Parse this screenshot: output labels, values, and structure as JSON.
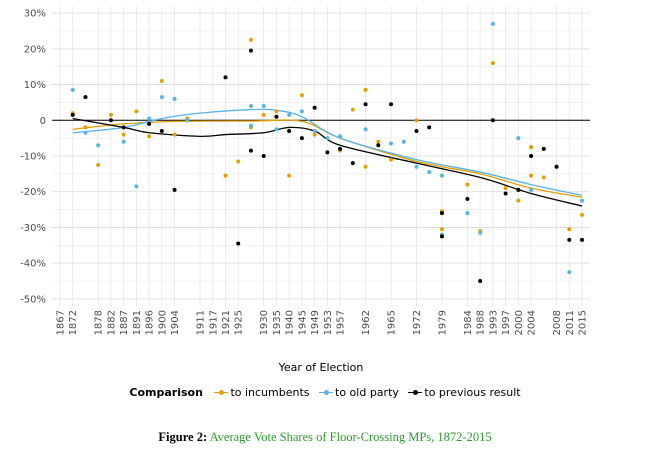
{
  "chart_data": {
    "type": "scatter",
    "title": "",
    "xlabel": "Year of Election",
    "ylabel": "",
    "ylim": [
      -0.52,
      0.32
    ],
    "y_ticks": [
      {
        "value": 0.3,
        "label": "30%"
      },
      {
        "value": 0.2,
        "label": "20%"
      },
      {
        "value": 0.1,
        "label": "10%"
      },
      {
        "value": 0.0,
        "label": "0"
      },
      {
        "value": -0.1,
        "label": "-10%"
      },
      {
        "value": -0.2,
        "label": "-20%"
      },
      {
        "value": -0.3,
        "label": "-30%"
      },
      {
        "value": -0.4,
        "label": "-40%"
      },
      {
        "value": -0.5,
        "label": "-50%"
      }
    ],
    "categories": [
      "1867",
      "1872",
      "1874",
      "1878",
      "1882",
      "1887",
      "1891",
      "1896",
      "1900",
      "1904",
      "1908",
      "1911",
      "1917",
      "1921",
      "1925",
      "1926",
      "1930",
      "1935",
      "1940",
      "1945",
      "1949",
      "1953",
      "1957",
      "1958",
      "1962",
      "1963",
      "1965",
      "1968",
      "1972",
      "1974",
      "1979",
      "1980",
      "1984",
      "1988",
      "1993",
      "1997",
      "2000",
      "2004",
      "2006",
      "2008",
      "2011",
      "2015"
    ],
    "x_tick_labels": [
      "1867",
      "1872",
      "1878",
      "1882",
      "1887",
      "1891",
      "1896",
      "1900",
      "1904",
      "1911",
      "1917",
      "1921",
      "1925",
      "1930",
      "1935",
      "1940",
      "1945",
      "1949",
      "1953",
      "1957",
      "1962",
      "1965",
      "1972",
      "1979",
      "1984",
      "1988",
      "1993",
      "1997",
      "2000",
      "2004",
      "2008",
      "2011",
      "2015"
    ],
    "zero_line": 0,
    "grid": true,
    "series": [
      {
        "name": "to incumbents",
        "color": "#E69F00",
        "points": [
          [
            "1872",
            0.02
          ],
          [
            "1874",
            -0.02
          ],
          [
            "1878",
            -0.125
          ],
          [
            "1882",
            0.015
          ],
          [
            "1887",
            -0.04
          ],
          [
            "1891",
            0.025
          ],
          [
            "1896",
            -0.045
          ],
          [
            "1900",
            0.11
          ],
          [
            "1904",
            -0.04
          ],
          [
            "1908",
            0.005
          ],
          [
            "1921",
            -0.155
          ],
          [
            "1925",
            -0.115
          ],
          [
            "1926",
            0.225
          ],
          [
            "1926",
            -0.02
          ],
          [
            "1930",
            0.015
          ],
          [
            "1935",
            0.025
          ],
          [
            "1940",
            -0.155
          ],
          [
            "1945",
            0.07
          ],
          [
            "1949",
            -0.04
          ],
          [
            "1957",
            -0.085
          ],
          [
            "1958",
            0.03
          ],
          [
            "1962",
            0.085
          ],
          [
            "1962",
            -0.13
          ],
          [
            "1963",
            -0.06
          ],
          [
            "1965",
            -0.11
          ],
          [
            "1972",
            0.0
          ],
          [
            "1979",
            -0.255
          ],
          [
            "1979",
            -0.305
          ],
          [
            "1984",
            -0.18
          ],
          [
            "1988",
            -0.31
          ],
          [
            "1993",
            0.16
          ],
          [
            "1997",
            -0.19
          ],
          [
            "2000",
            -0.225
          ],
          [
            "2004",
            -0.075
          ],
          [
            "2004",
            -0.155
          ],
          [
            "2006",
            -0.16
          ],
          [
            "2011",
            -0.305
          ],
          [
            "2015",
            -0.265
          ]
        ],
        "trend": [
          [
            "1872",
            -0.025
          ],
          [
            "1887",
            -0.01
          ],
          [
            "1904",
            -0.003
          ],
          [
            "1926",
            -0.002
          ],
          [
            "1945",
            -0.003
          ],
          [
            "1957",
            -0.05
          ],
          [
            "1972",
            -0.115
          ],
          [
            "1988",
            -0.15
          ],
          [
            "2004",
            -0.19
          ],
          [
            "2015",
            -0.215
          ]
        ]
      },
      {
        "name": "to old party",
        "color": "#56B4E9",
        "points": [
          [
            "1872",
            0.085
          ],
          [
            "1874",
            -0.035
          ],
          [
            "1878",
            -0.07
          ],
          [
            "1887",
            -0.06
          ],
          [
            "1891",
            -0.185
          ],
          [
            "1896",
            0.005
          ],
          [
            "1900",
            0.065
          ],
          [
            "1904",
            0.06
          ],
          [
            "1908",
            0.0
          ],
          [
            "1926",
            0.04
          ],
          [
            "1926",
            -0.015
          ],
          [
            "1930",
            0.04
          ],
          [
            "1935",
            -0.025
          ],
          [
            "1940",
            0.015
          ],
          [
            "1945",
            0.025
          ],
          [
            "1949",
            -0.03
          ],
          [
            "1953",
            -0.05
          ],
          [
            "1957",
            -0.045
          ],
          [
            "1962",
            -0.025
          ],
          [
            "1965",
            -0.065
          ],
          [
            "1968",
            -0.06
          ],
          [
            "1972",
            -0.13
          ],
          [
            "1974",
            -0.145
          ],
          [
            "1979",
            -0.155
          ],
          [
            "1979",
            -0.32
          ],
          [
            "1984",
            -0.26
          ],
          [
            "1988",
            -0.315
          ],
          [
            "1993",
            0.27
          ],
          [
            "2000",
            -0.05
          ],
          [
            "2004",
            -0.195
          ],
          [
            "2008",
            -0.13
          ],
          [
            "2011",
            -0.425
          ],
          [
            "2015",
            -0.225
          ]
        ],
        "trend": [
          [
            "1872",
            -0.035
          ],
          [
            "1887",
            -0.02
          ],
          [
            "1900",
            0.005
          ],
          [
            "1911",
            0.02
          ],
          [
            "1926",
            0.03
          ],
          [
            "1935",
            0.028
          ],
          [
            "1945",
            0.01
          ],
          [
            "1957",
            -0.05
          ],
          [
            "1972",
            -0.11
          ],
          [
            "1988",
            -0.145
          ],
          [
            "2004",
            -0.18
          ],
          [
            "2015",
            -0.21
          ]
        ]
      },
      {
        "name": "to previous result",
        "color": "#000000",
        "points": [
          [
            "1872",
            0.015
          ],
          [
            "1874",
            0.065
          ],
          [
            "1882",
            0.0
          ],
          [
            "1887",
            -0.02
          ],
          [
            "1896",
            -0.01
          ],
          [
            "1900",
            -0.03
          ],
          [
            "1904",
            -0.195
          ],
          [
            "1921",
            0.12
          ],
          [
            "1925",
            -0.345
          ],
          [
            "1926",
            0.195
          ],
          [
            "1926",
            -0.085
          ],
          [
            "1930",
            -0.1
          ],
          [
            "1935",
            0.01
          ],
          [
            "1940",
            -0.03
          ],
          [
            "1945",
            -0.05
          ],
          [
            "1949",
            0.035
          ],
          [
            "1953",
            -0.09
          ],
          [
            "1957",
            -0.08
          ],
          [
            "1958",
            -0.12
          ],
          [
            "1962",
            0.045
          ],
          [
            "1963",
            -0.07
          ],
          [
            "1965",
            0.045
          ],
          [
            "1972",
            -0.03
          ],
          [
            "1974",
            -0.02
          ],
          [
            "1979",
            -0.325
          ],
          [
            "1979",
            -0.26
          ],
          [
            "1984",
            -0.22
          ],
          [
            "1988",
            -0.45
          ],
          [
            "1993",
            0.0
          ],
          [
            "1997",
            -0.205
          ],
          [
            "2000",
            -0.195
          ],
          [
            "2004",
            -0.1
          ],
          [
            "2006",
            -0.08
          ],
          [
            "2008",
            -0.13
          ],
          [
            "2011",
            -0.335
          ],
          [
            "2015",
            -0.335
          ]
        ],
        "trend": [
          [
            "1872",
            0.005
          ],
          [
            "1887",
            -0.02
          ],
          [
            "1896",
            -0.035
          ],
          [
            "1911",
            -0.045
          ],
          [
            "1921",
            -0.04
          ],
          [
            "1930",
            -0.035
          ],
          [
            "1940",
            -0.02
          ],
          [
            "1949",
            -0.03
          ],
          [
            "1957",
            -0.07
          ],
          [
            "1972",
            -0.12
          ],
          [
            "1988",
            -0.16
          ],
          [
            "2004",
            -0.205
          ],
          [
            "2015",
            -0.24
          ]
        ]
      }
    ]
  },
  "legend": {
    "title": "Comparison",
    "items": [
      "to incumbents",
      "to old party",
      "to previous result"
    ]
  },
  "caption": {
    "label": "Figure 2:",
    "text": "Average Vote Shares of Floor-Crossing MPs, 1872-2015"
  }
}
